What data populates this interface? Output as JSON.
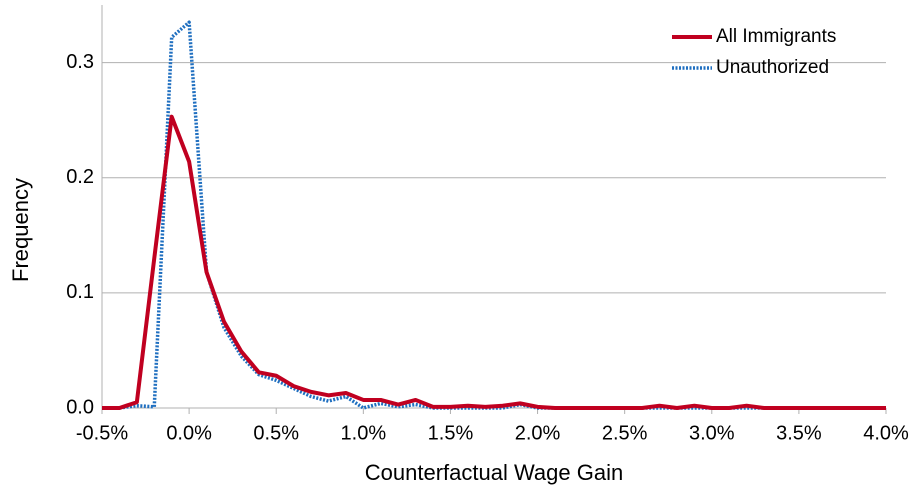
{
  "chart_data": {
    "type": "line",
    "x_label": "Counterfactual Wage Gain",
    "y_label": "Frequency",
    "x": [
      -0.5,
      -0.4,
      -0.3,
      -0.2,
      -0.1,
      0.0,
      0.1,
      0.2,
      0.3,
      0.4,
      0.5,
      0.6,
      0.7,
      0.8,
      0.9,
      1.0,
      1.1,
      1.2,
      1.3,
      1.4,
      1.5,
      1.6,
      1.7,
      1.8,
      1.9,
      2.0,
      2.1,
      2.2,
      2.3,
      2.4,
      2.5,
      2.6,
      2.7,
      2.8,
      2.9,
      3.0,
      3.1,
      3.2,
      3.3,
      3.4,
      3.5,
      3.6,
      3.7,
      3.8,
      3.9,
      4.0
    ],
    "series": [
      {
        "name": "All Immigrants",
        "color": "#c00020",
        "style": "solid",
        "values": [
          0,
          0,
          0.005,
          0.13,
          0.253,
          0.214,
          0.118,
          0.075,
          0.049,
          0.031,
          0.028,
          0.019,
          0.014,
          0.011,
          0.013,
          0.007,
          0.007,
          0.003,
          0.007,
          0.001,
          0.001,
          0.002,
          0.001,
          0.002,
          0.004,
          0.001,
          0,
          0,
          0,
          0,
          0,
          0,
          0.002,
          0,
          0.002,
          0,
          0,
          0.002,
          0,
          0,
          0,
          0,
          0,
          0,
          0,
          0
        ]
      },
      {
        "name": "Unauthorized",
        "color": "#1f6fc0",
        "style": "dotted",
        "values": [
          0,
          0,
          0.002,
          0.001,
          0.322,
          0.335,
          0.118,
          0.07,
          0.045,
          0.029,
          0.024,
          0.017,
          0.01,
          0.006,
          0.01,
          0,
          0.004,
          0.001,
          0.003,
          0,
          0,
          0,
          0,
          0,
          0.003,
          0,
          0,
          0,
          0,
          0,
          0,
          0,
          0,
          0,
          0,
          0,
          0,
          0,
          0,
          0,
          0,
          0,
          0,
          0,
          0,
          0
        ]
      }
    ],
    "xlim": [
      -0.5,
      4.0
    ],
    "xticks": [
      {
        "value": -0.5,
        "label": "-0.5%"
      },
      {
        "value": 0.0,
        "label": "0.0%"
      },
      {
        "value": 0.5,
        "label": "0.5%"
      },
      {
        "value": 1.0,
        "label": "1.0%"
      },
      {
        "value": 1.5,
        "label": "1.5%"
      },
      {
        "value": 2.0,
        "label": "2.0%"
      },
      {
        "value": 2.5,
        "label": "2.5%"
      },
      {
        "value": 3.0,
        "label": "3.0%"
      },
      {
        "value": 3.5,
        "label": "3.5%"
      },
      {
        "value": 4.0,
        "label": "4.0%"
      }
    ],
    "ylim": [
      0,
      0.35
    ],
    "yticks": [
      {
        "value": 0,
        "label": "0.0"
      },
      0.1,
      0.2,
      0.3
    ],
    "grid": true,
    "legend": "top-right"
  }
}
